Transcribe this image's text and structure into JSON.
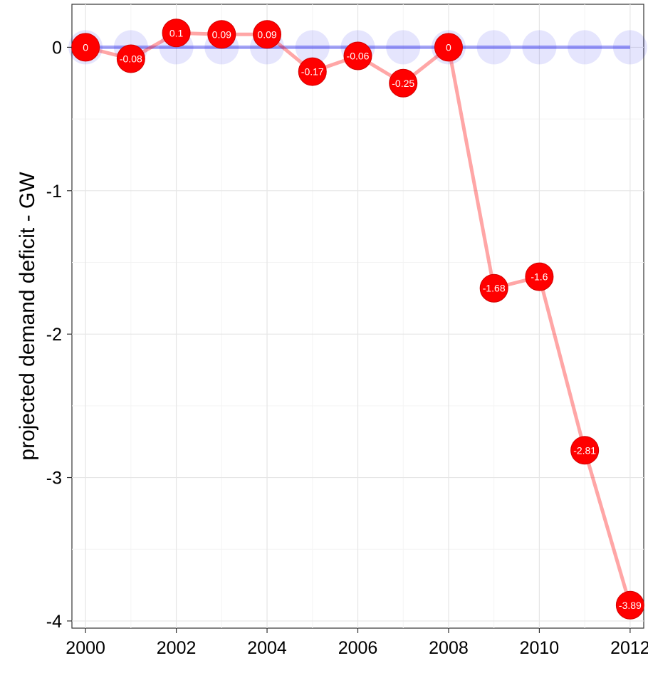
{
  "chart_data": {
    "type": "line",
    "title": "",
    "xlabel": "",
    "ylabel": "projected demand deficit - GW",
    "x": [
      2000,
      2001,
      2002,
      2003,
      2004,
      2005,
      2006,
      2007,
      2008,
      2009,
      2010,
      2011,
      2012
    ],
    "x_ticks": [
      2000,
      2002,
      2004,
      2006,
      2008,
      2010,
      2012
    ],
    "x_tick_labels": [
      "2000",
      "2002",
      "2004",
      "2006",
      "2008",
      "2010",
      "2012"
    ],
    "y_ticks": [
      0,
      -1,
      -2,
      -3,
      -4
    ],
    "y_tick_labels": [
      "0",
      "-1",
      "-2",
      "-3",
      "-4"
    ],
    "xlim": [
      1999.7,
      2012.3
    ],
    "ylim": [
      -4.05,
      0.3
    ],
    "grid": true,
    "series": [
      {
        "color": "#0000ee",
        "style": "baseline",
        "values": [
          0,
          0,
          0,
          0,
          0,
          0,
          0,
          0,
          0,
          0,
          0,
          0,
          0
        ]
      },
      {
        "color": "#ff0000",
        "style": "labeled",
        "values": [
          0,
          -0.08,
          0.1,
          0.09,
          0.09,
          -0.17,
          -0.06,
          -0.25,
          0,
          -1.68,
          -1.6,
          -2.81,
          -3.89
        ],
        "labels": [
          "0",
          "-0.08",
          "0.1",
          "0.09",
          "0.09",
          "-0.17",
          "-0.06",
          "-0.25",
          "0",
          "-1.68",
          "-1.6",
          "-2.81",
          "-3.89"
        ]
      }
    ]
  }
}
